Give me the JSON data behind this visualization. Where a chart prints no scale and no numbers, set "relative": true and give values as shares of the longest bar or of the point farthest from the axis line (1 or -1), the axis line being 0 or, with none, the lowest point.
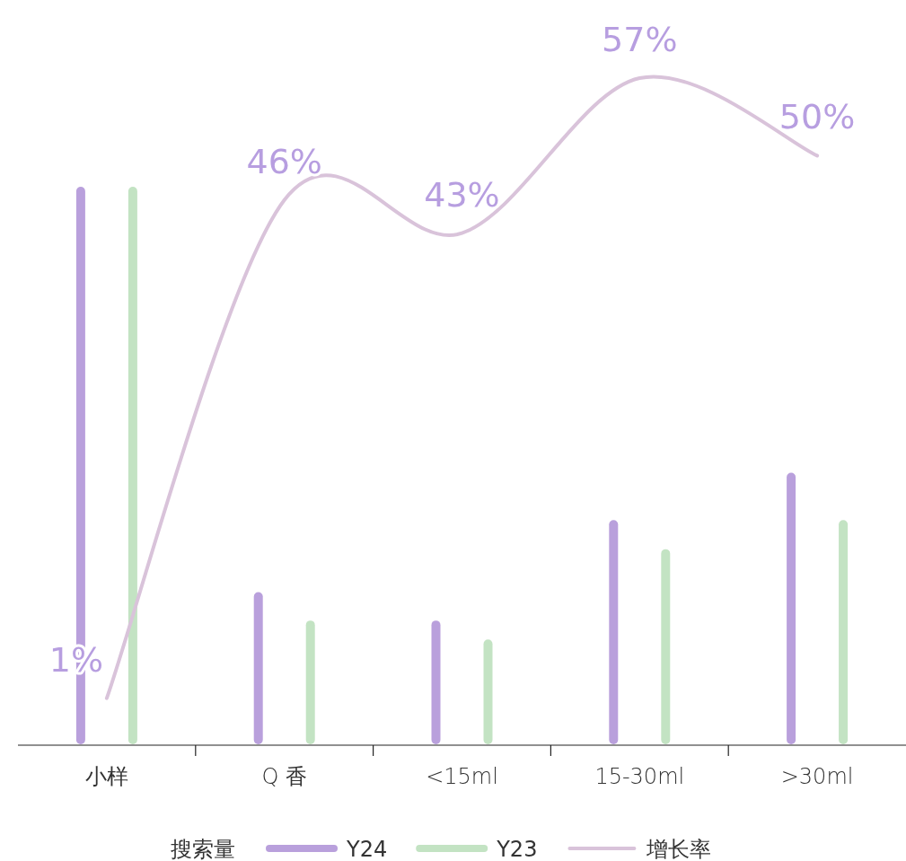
{
  "chart_data": [
    {
      "type": "bar",
      "relative": true,
      "categories": [
        "小样",
        "Q 香",
        "<15ml",
        "15-30ml",
        ">30ml"
      ],
      "legend_title": "搜索量",
      "legend": "bottom",
      "series": [
        {
          "name": "Y24",
          "color": "#b9a0dc",
          "values": [
            1,
            0.273,
            0.222,
            0.402,
            0.487
          ]
        },
        {
          "name": "Y23",
          "color": "#c3e3c3",
          "values": [
            1,
            0.222,
            0.188,
            0.35,
            0.402
          ]
        }
      ]
    },
    {
      "type": "line",
      "categories": [
        null,
        null,
        null,
        null,
        null
      ],
      "tick_labels": false,
      "legend": "bottom",
      "series": [
        {
          "name": "增长率",
          "color": "#d9c3da",
          "values": [
            1,
            46,
            43,
            57,
            50
          ],
          "value_labels": [
            "1%",
            "46%",
            "43%",
            "57%",
            "50%"
          ]
        }
      ]
    }
  ]
}
